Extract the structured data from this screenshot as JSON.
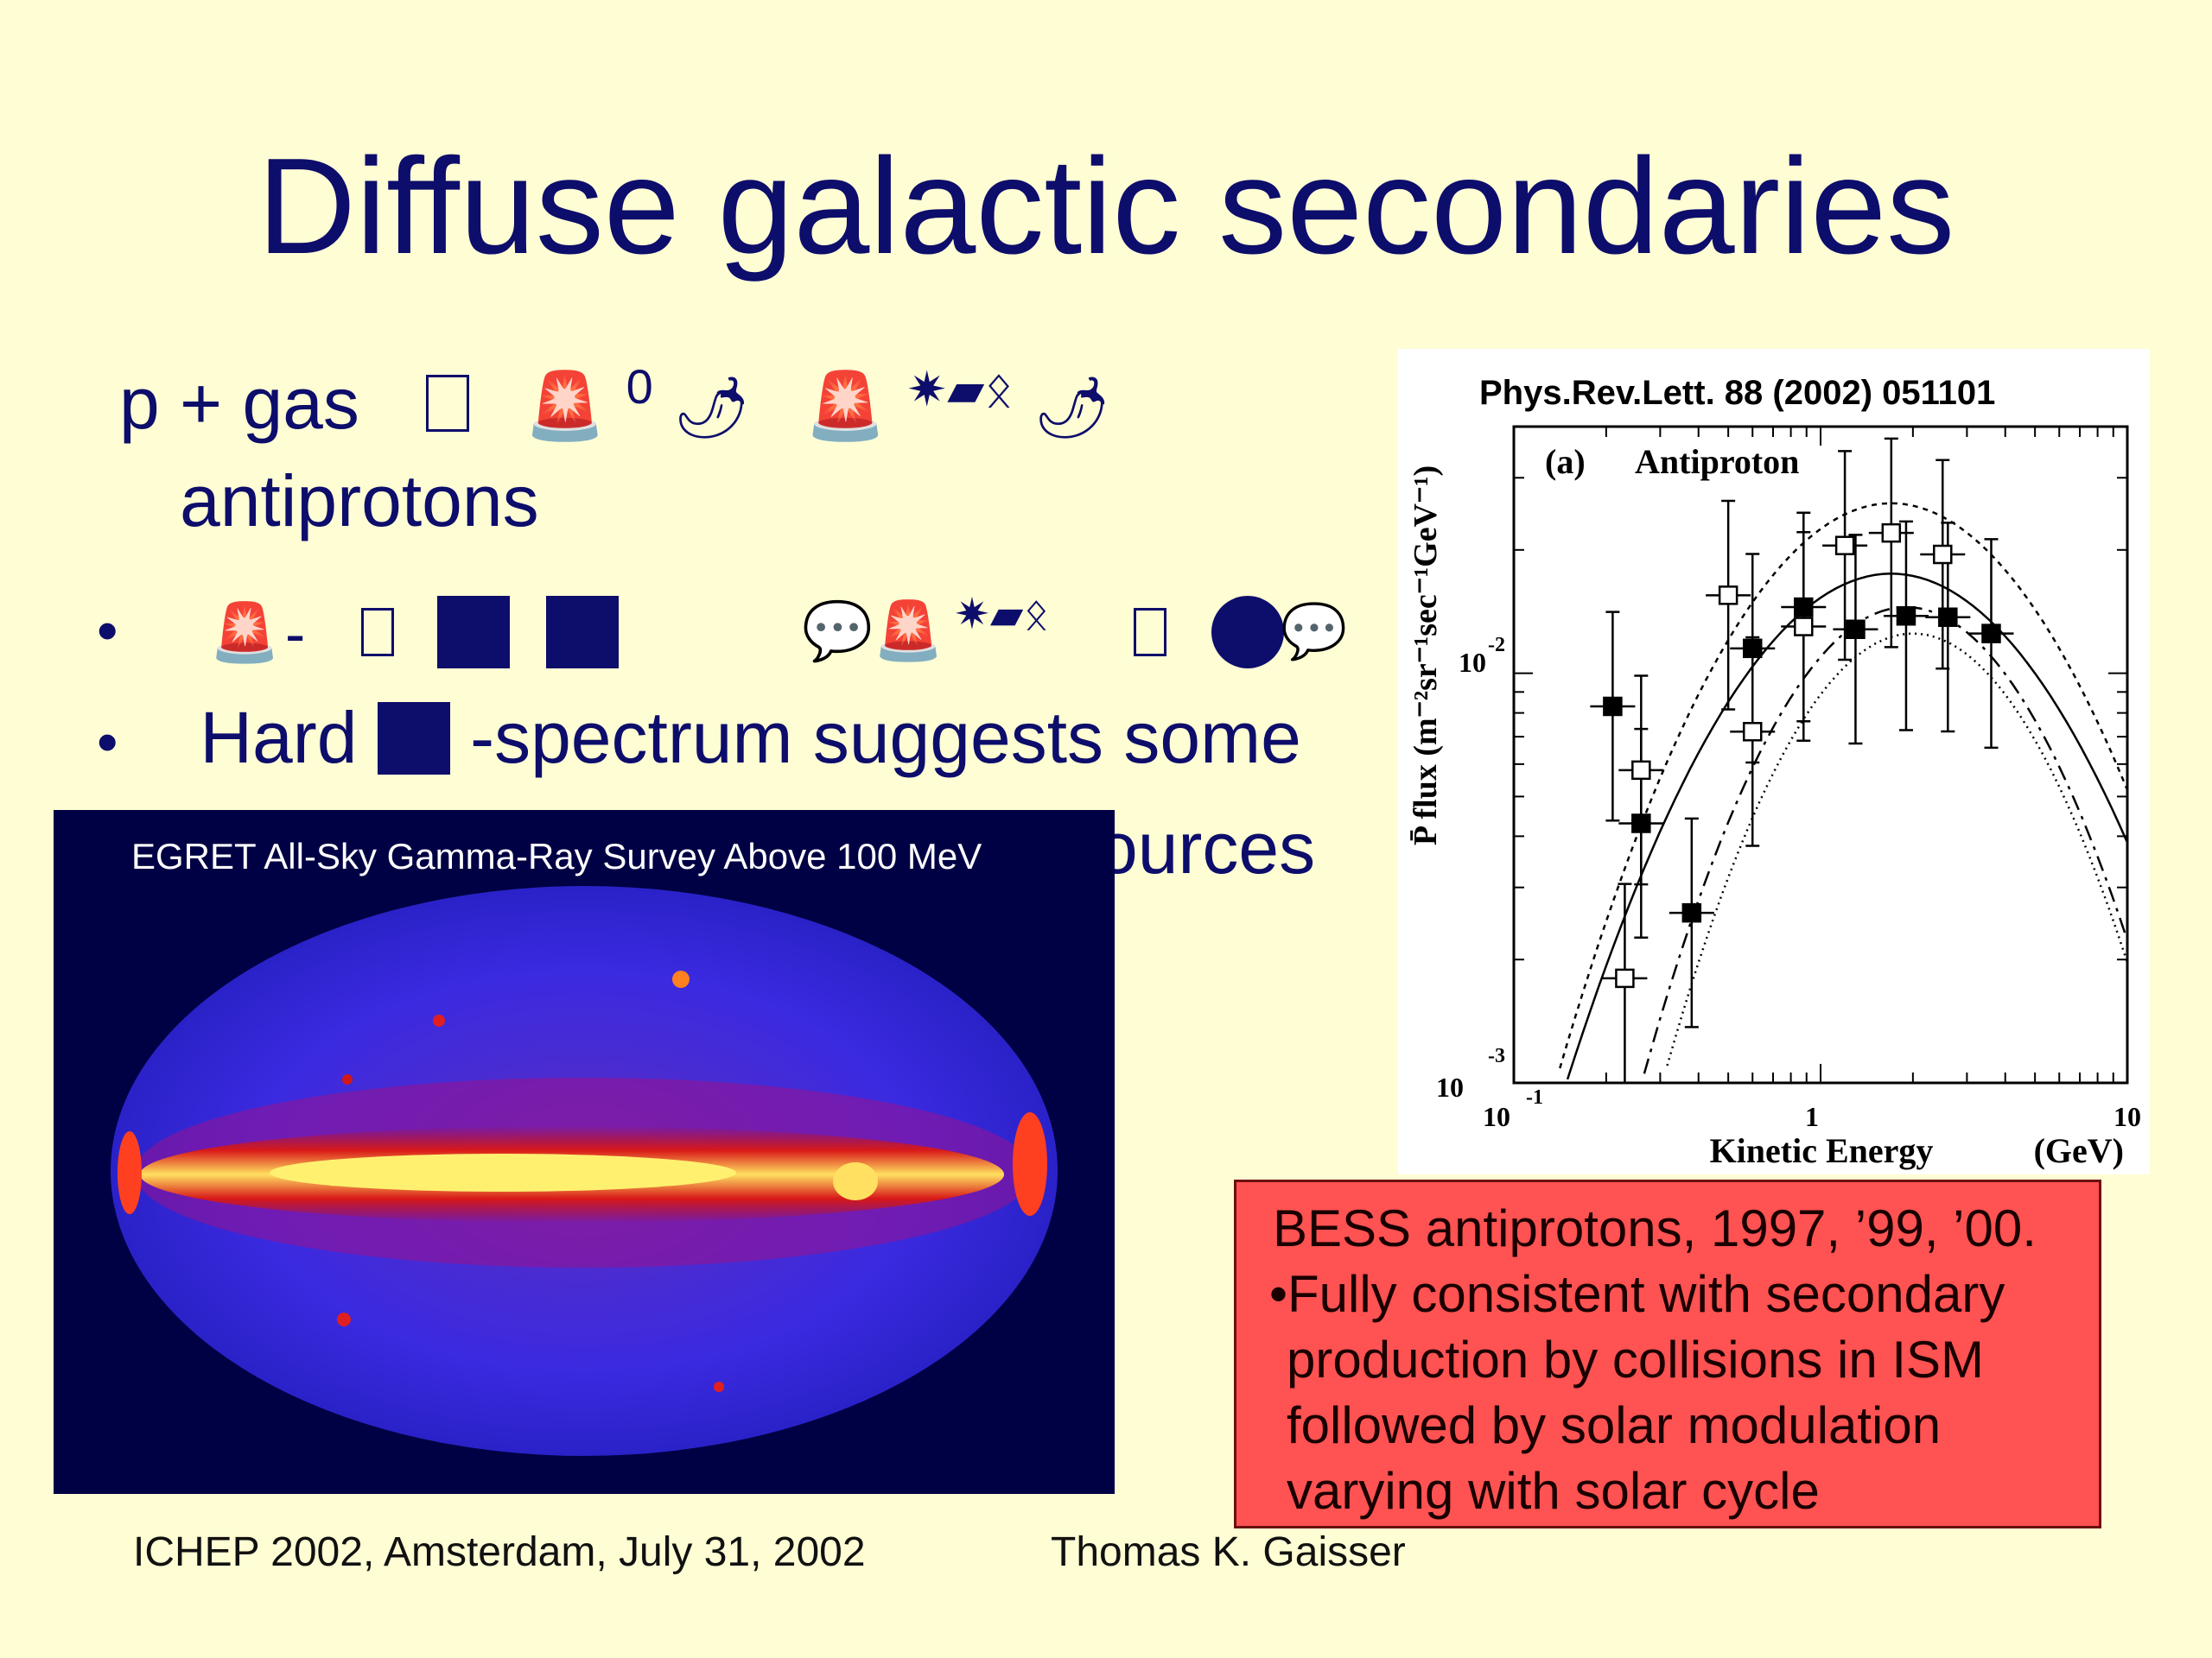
{
  "title": "Diffuse galactic secondaries",
  "line1": {
    "prefix": "p + gas",
    "pi_superscript": "0",
    "continuation": "antiprotons"
  },
  "bullets": [
    {
      "marker": "•"
    },
    {
      "marker": "•",
      "before": "Hard ",
      "after": "-spectrum suggests some",
      "continuation_fragment": "ources"
    }
  ],
  "egret": {
    "title": "EGRET All-Sky Gamma-Ray Survey Above 100 MeV"
  },
  "figure": {
    "citation": "Phys.Rev.Lett. 88 (2002) 051101",
    "panel_label": "(a)",
    "panel_name": "Antiproton",
    "ylabel": "P̄ flux (m⁻²sr⁻¹sec⁻¹GeV⁻¹)",
    "xlabel": "Kinetic Energy",
    "xunit": "(GeV)",
    "y_tick_base": "10",
    "y_tick_exponents": [
      "-2",
      "-3"
    ],
    "x_ticks": [
      {
        "base": "10",
        "exp": "-1"
      },
      {
        "base": "1",
        "exp": ""
      },
      {
        "base": "10",
        "exp": ""
      }
    ]
  },
  "chart_data": {
    "type": "scatter",
    "title": "(a) Antiproton",
    "xlabel": "Kinetic Energy (GeV)",
    "ylabel": "P̄ flux (m⁻²sr⁻¹sec⁻¹GeV⁻¹)",
    "xscale": "log",
    "yscale": "log",
    "xlim": [
      0.1,
      10
    ],
    "ylim": [
      0.001,
      0.04
    ],
    "series": [
      {
        "marker": "filled-square",
        "x": [
          0.21,
          0.26,
          0.38,
          0.6,
          0.88,
          1.3,
          1.9,
          2.6,
          3.6
        ],
        "y": [
          0.0083,
          0.0043,
          0.0026,
          0.0115,
          0.0145,
          0.0128,
          0.0138,
          0.0137,
          0.0125
        ]
      },
      {
        "marker": "open-square",
        "x": [
          0.23,
          0.26,
          0.5,
          0.6,
          0.88,
          1.2,
          1.7,
          2.5
        ],
        "y": [
          0.0018,
          0.0058,
          0.0155,
          0.0072,
          0.013,
          0.0205,
          0.022,
          0.0195
        ]
      }
    ],
    "curves": [
      "solid",
      "dashed",
      "dash-dot",
      "dotted"
    ]
  },
  "info_box": {
    "lines": [
      "BESS antiprotons, 1997, ’99, ’00.",
      "•Fully consistent with secondary",
      "production by collisions in ISM",
      "followed by solar modulation",
      "varying with solar cycle"
    ]
  },
  "footer": {
    "left": "ICHEP 2002, Amsterdam, July 31, 2002",
    "right": "Thomas K. Gaisser"
  },
  "colors": {
    "background": "#fffdd4",
    "text": "#0d0d6b",
    "box": "#ff5252"
  }
}
